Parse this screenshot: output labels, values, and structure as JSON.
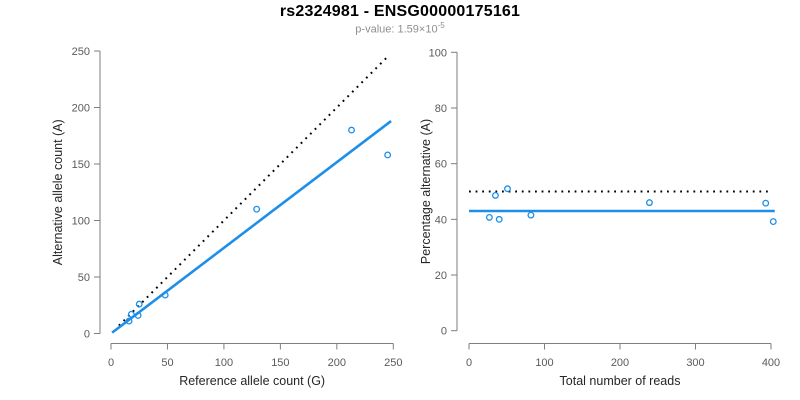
{
  "header": {
    "title": "rs2324981 - ENSG00000175161",
    "pvalue_prefix": "p-value: 1.59×10",
    "pvalue_exponent": "-5"
  },
  "style": {
    "accent_blue": "#1E8FE8",
    "dotted_line_color": "#000000",
    "axis_color": "#7E7E7E",
    "tick_label_color": "#5A5A5A",
    "axis_title_color": "#262626",
    "title_color": "#000000",
    "subtitle_color": "#8F8F8F",
    "background": "#FFFFFF"
  },
  "chart_data": [
    {
      "type": "scatter",
      "panel": "left",
      "xlabel": "Reference allele count (G)",
      "ylabel": "Alternative allele count (A)",
      "xlim": [
        0,
        250
      ],
      "ylim": [
        0,
        250
      ],
      "xticks": [
        0,
        50,
        100,
        150,
        200,
        250
      ],
      "yticks": [
        0,
        50,
        100,
        150,
        200,
        250
      ],
      "grid": false,
      "legend": "none",
      "points": [
        [
          16,
          11
        ],
        [
          18,
          17
        ],
        [
          24,
          16
        ],
        [
          25,
          26
        ],
        [
          48,
          34
        ],
        [
          129,
          110
        ],
        [
          213,
          180
        ],
        [
          245,
          158
        ]
      ],
      "lines": [
        {
          "name": "identity-50pct-line",
          "style": "dotted",
          "slope": 1,
          "intercept": 0,
          "x_range": [
            7,
            244
          ]
        },
        {
          "name": "fitted-ratio-line",
          "style": "solid",
          "slope": 0.758,
          "intercept": 0,
          "x_range": [
            1,
            248
          ]
        }
      ]
    },
    {
      "type": "scatter",
      "panel": "right",
      "xlabel": "Total number of reads",
      "ylabel": "Percentage alternative (A)",
      "xlim": [
        0,
        400
      ],
      "ylim": [
        0,
        100
      ],
      "xticks": [
        0,
        100,
        200,
        300,
        400
      ],
      "yticks": [
        0,
        20,
        40,
        60,
        80,
        100
      ],
      "grid": false,
      "legend": "none",
      "points": [
        [
          27,
          40.7
        ],
        [
          35,
          48.6
        ],
        [
          40,
          40.0
        ],
        [
          51,
          51.0
        ],
        [
          82,
          41.5
        ],
        [
          239,
          46.0
        ],
        [
          393,
          45.8
        ],
        [
          403,
          39.2
        ]
      ],
      "lines": [
        {
          "name": "expected-50pct-line",
          "style": "dotted",
          "value": 50,
          "x_range": [
            0,
            396
          ]
        },
        {
          "name": "mean-percentage-line",
          "style": "solid",
          "value": 43,
          "x_range": [
            0,
            405
          ]
        }
      ]
    }
  ]
}
